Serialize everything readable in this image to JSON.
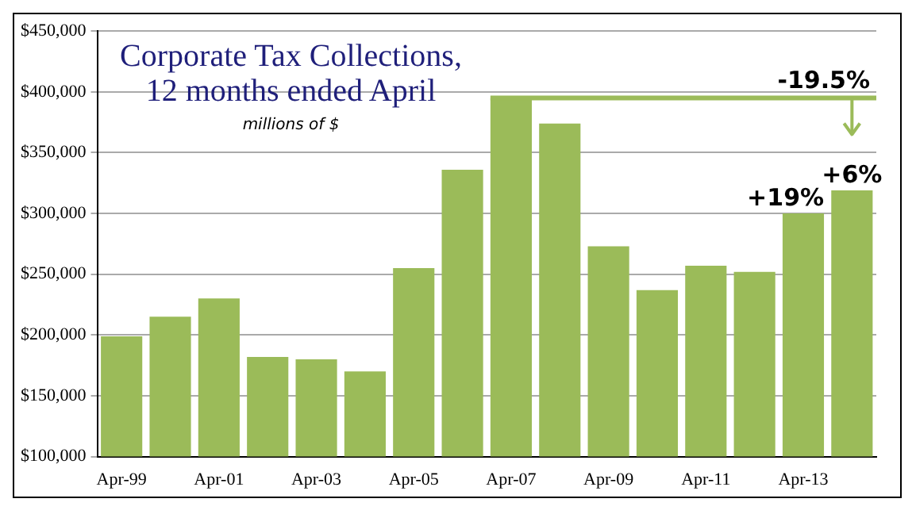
{
  "chart_data": {
    "type": "bar",
    "title": "Corporate Tax Collections,\n12 months ended April",
    "subtitle": "millions of $",
    "categories": [
      "Apr-99",
      null,
      "Apr-01",
      null,
      "Apr-03",
      null,
      "Apr-05",
      null,
      "Apr-07",
      null,
      "Apr-09",
      null,
      "Apr-11",
      null,
      "Apr-13",
      null
    ],
    "values": [
      199000,
      215000,
      230000,
      182000,
      180000,
      170000,
      255000,
      336000,
      395000,
      374000,
      273000,
      237000,
      257000,
      252000,
      300000,
      319000
    ],
    "annotations": [
      {
        "text": "-19.5%",
        "y": 395000
      },
      {
        "text": "+19%",
        "x": "Apr-13",
        "y": 300000
      },
      {
        "text": "+6%",
        "y": 319000
      }
    ],
    "color": "#9bbb59",
    "ylim": [
      100000,
      450000
    ],
    "yticks": [
      {
        "value": 100000,
        "label": "$100,000"
      },
      {
        "value": 150000,
        "label": "$150,000"
      },
      {
        "value": 200000,
        "label": "$200,000"
      },
      {
        "value": 250000,
        "label": "$250,000"
      },
      {
        "value": 300000,
        "label": "$300,000"
      },
      {
        "value": 350000,
        "label": "$350,000"
      },
      {
        "value": 400000,
        "label": "$400,000"
      },
      {
        "value": 450000,
        "label": "$450,000"
      }
    ],
    "ref_lines": [
      {
        "axis": "y",
        "value": 395000,
        "color": "#9bbb59"
      }
    ],
    "grid": "y",
    "legend": false
  }
}
